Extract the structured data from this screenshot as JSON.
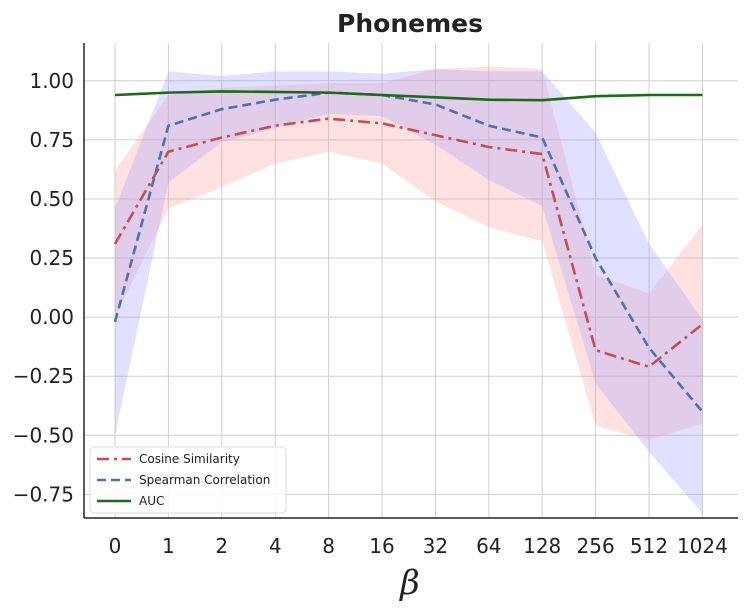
{
  "chart_data": {
    "type": "line",
    "title": "Phonemes",
    "xlabel": "β",
    "ylabel": "",
    "categories": [
      "0",
      "1",
      "2",
      "4",
      "8",
      "16",
      "32",
      "64",
      "128",
      "256",
      "512",
      "1024"
    ],
    "ylim": [
      -0.85,
      1.16
    ],
    "yticks": [
      -0.75,
      -0.5,
      -0.25,
      0.0,
      0.25,
      0.5,
      0.75,
      1.0
    ],
    "ytick_labels": [
      "−0.75",
      "−0.50",
      "−0.25",
      "0.00",
      "0.25",
      "0.50",
      "0.75",
      "1.00"
    ],
    "grid": true,
    "legend_position": "lower-left",
    "series": [
      {
        "name": "Cosine Similarity",
        "color": "#c44e52",
        "style": "dashdot",
        "values": [
          0.31,
          0.7,
          0.76,
          0.81,
          0.84,
          0.82,
          0.77,
          0.72,
          0.69,
          -0.14,
          -0.21,
          -0.03
        ],
        "band_lower": [
          0.0,
          0.46,
          0.55,
          0.65,
          0.7,
          0.65,
          0.49,
          0.38,
          0.32,
          -0.46,
          -0.52,
          -0.45
        ],
        "band_upper": [
          0.62,
          0.94,
          0.97,
          0.98,
          0.99,
          0.99,
          1.05,
          1.06,
          1.05,
          0.18,
          0.1,
          0.39
        ],
        "band_color": "#ff9a9a"
      },
      {
        "name": "Spearman Correlation",
        "color": "#4c72b0",
        "style": "dashed",
        "values": [
          -0.02,
          0.81,
          0.88,
          0.92,
          0.95,
          0.94,
          0.9,
          0.81,
          0.76,
          0.25,
          -0.13,
          -0.4
        ],
        "band_lower": [
          -0.5,
          0.57,
          0.74,
          0.8,
          0.86,
          0.85,
          0.73,
          0.58,
          0.47,
          -0.28,
          -0.57,
          -0.83
        ],
        "band_upper": [
          0.46,
          1.04,
          1.02,
          1.04,
          1.04,
          1.03,
          1.05,
          1.04,
          1.04,
          0.78,
          0.31,
          -0.01
        ],
        "band_color": "#9a9aff"
      },
      {
        "name": "AUC",
        "color": "#1a6b1a",
        "style": "solid",
        "values": [
          0.94,
          0.95,
          0.955,
          0.953,
          0.95,
          0.94,
          0.93,
          0.92,
          0.918,
          0.935,
          0.94,
          0.94
        ]
      }
    ]
  }
}
